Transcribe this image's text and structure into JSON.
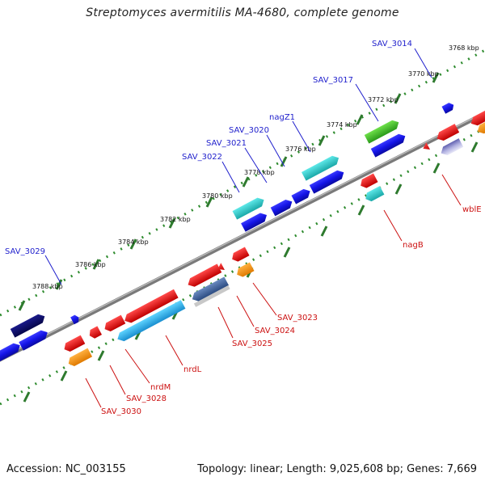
{
  "title": "Streptomyces avermitilis MA-4680, complete genome",
  "footer": {
    "accession": "Accession: NC_003155",
    "summary": "Topology: linear; Length: 9,025,608 bp; Genes: 7,669"
  },
  "colors": {
    "backbone": "#808080",
    "tick": "#2e8b2e",
    "forward_label": "#1f1fcc",
    "reverse_label": "#cc1111"
  },
  "ruler": [
    "3768 kbp",
    "3770 kbp",
    "3772 kbp",
    "3774 kbp",
    "3776 kbp",
    "3778 kbp",
    "3780 kbp",
    "3782 kbp",
    "3784 kbp",
    "3786 kbp",
    "3788 kbp"
  ],
  "forward_labels": [
    "SAV_3014",
    "SAV_3017",
    "nagZ1",
    "SAV_3020",
    "SAV_3021",
    "SAV_3022",
    "SAV_3029"
  ],
  "reverse_labels": [
    "wblE",
    "nagB",
    "SAV_3023",
    "SAV_3024",
    "SAV_3025",
    "nrdL",
    "nrdM",
    "SAV_3028",
    "SAV_3030"
  ],
  "gene_blocks": [
    "blue",
    "navy",
    "green",
    "cyan",
    "red",
    "orange",
    "sky",
    "slate",
    "lavender"
  ]
}
